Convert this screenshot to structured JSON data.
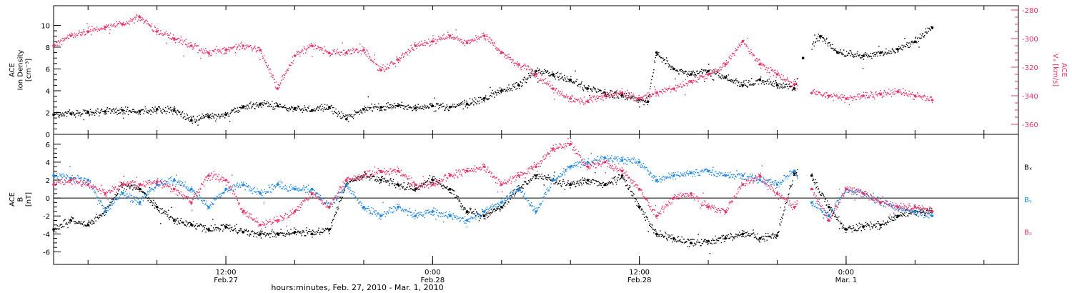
{
  "figure": {
    "x_axis_title": "hours:minutes, Feb. 27, 2010 - Mar.  1, 2010",
    "x_ticks": [
      {
        "time": "12:00",
        "date": "Feb.27",
        "hours": 12
      },
      {
        "time": "0:00",
        "date": "Feb.28",
        "hours": 24
      },
      {
        "time": "12:00",
        "date": "Feb.28",
        "hours": 36
      },
      {
        "time": "0:00",
        "date": "Mar.  1",
        "hours": 48
      }
    ],
    "colors": {
      "black": "#000000",
      "pink": "#e8336a",
      "blue": "#1f88e5",
      "axis": "#000000"
    }
  },
  "chart_data": [
    {
      "type": "scatter",
      "panel": "top",
      "xlim_hours": [
        2,
        58
      ],
      "left_axis": {
        "label_lines": [
          "ACE",
          "Ion Density",
          "[cm⁻³]"
        ],
        "ylim": [
          0,
          11.8
        ],
        "ticks": [
          0,
          2,
          4,
          6,
          8,
          10
        ]
      },
      "right_axis": {
        "label_lines": [
          "ACE",
          "Vₓ [km/s]"
        ],
        "ylim": [
          -367,
          -277
        ],
        "ticks": [
          -280,
          -300,
          -320,
          -340,
          -360
        ]
      },
      "series": [
        {
          "axis": "left",
          "color": "black",
          "points": [
            [
              2,
              1.8
            ],
            [
              3,
              1.9
            ],
            [
              4,
              2.0
            ],
            [
              5,
              2.1
            ],
            [
              6,
              2.2
            ],
            [
              7,
              2.1
            ],
            [
              8,
              2.3
            ],
            [
              9,
              2.2
            ],
            [
              10,
              1.3
            ],
            [
              11,
              1.6
            ],
            [
              12,
              1.8
            ],
            [
              13,
              2.5
            ],
            [
              14,
              2.8
            ],
            [
              15,
              2.6
            ],
            [
              16,
              2.4
            ],
            [
              17,
              2.2
            ],
            [
              18,
              2.5
            ],
            [
              19,
              1.4
            ],
            [
              20,
              2.3
            ],
            [
              21,
              2.5
            ],
            [
              22,
              2.6
            ],
            [
              23,
              2.4
            ],
            [
              24,
              2.6
            ],
            [
              25,
              2.5
            ],
            [
              26,
              2.8
            ],
            [
              27,
              3.3
            ],
            [
              28,
              4.0
            ],
            [
              29,
              4.5
            ],
            [
              30,
              5.8
            ],
            [
              31,
              5.5
            ],
            [
              32,
              5.0
            ],
            [
              33,
              4.2
            ],
            [
              34,
              3.8
            ],
            [
              35,
              3.6
            ],
            [
              36,
              3.2
            ],
            [
              36.5,
              3.0
            ],
            [
              37,
              7.5
            ],
            [
              38,
              6.0
            ],
            [
              39,
              5.5
            ],
            [
              40,
              5.8
            ],
            [
              41,
              5.2
            ],
            [
              42,
              4.5
            ],
            [
              43,
              5.0
            ],
            [
              44,
              4.5
            ],
            [
              45,
              4.2
            ],
            [
              45.5,
              7.0
            ],
            [
              46.5,
              9.0
            ],
            [
              47.5,
              7.5
            ],
            [
              49,
              7.2
            ],
            [
              50,
              7.5
            ],
            [
              51,
              7.8
            ],
            [
              52,
              8.5
            ],
            [
              53,
              9.8
            ]
          ]
        },
        {
          "axis": "right",
          "color": "pink",
          "points": [
            [
              2,
              -305
            ],
            [
              3,
              -298
            ],
            [
              4,
              -295
            ],
            [
              5,
              -292
            ],
            [
              6,
              -290
            ],
            [
              7,
              -285
            ],
            [
              8,
              -295
            ],
            [
              9,
              -300
            ],
            [
              10,
              -305
            ],
            [
              11,
              -310
            ],
            [
              12,
              -308
            ],
            [
              13,
              -305
            ],
            [
              14,
              -308
            ],
            [
              15,
              -335
            ],
            [
              16,
              -312
            ],
            [
              17,
              -305
            ],
            [
              18,
              -310
            ],
            [
              19,
              -310
            ],
            [
              20,
              -308
            ],
            [
              21,
              -322
            ],
            [
              22,
              -315
            ],
            [
              23,
              -305
            ],
            [
              24,
              -302
            ],
            [
              25,
              -298
            ],
            [
              26,
              -303
            ],
            [
              27,
              -298
            ],
            [
              28,
              -310
            ],
            [
              29,
              -318
            ],
            [
              30,
              -325
            ],
            [
              31,
              -335
            ],
            [
              32,
              -342
            ],
            [
              33,
              -344
            ],
            [
              34,
              -340
            ],
            [
              35,
              -338
            ],
            [
              36,
              -342
            ],
            [
              37,
              -338
            ],
            [
              38,
              -335
            ],
            [
              39,
              -330
            ],
            [
              40,
              -325
            ],
            [
              41,
              -318
            ],
            [
              42,
              -302
            ],
            [
              43,
              -318
            ],
            [
              44,
              -325
            ],
            [
              45,
              -332
            ],
            [
              46,
              -338
            ],
            [
              47,
              -340
            ],
            [
              48,
              -342
            ],
            [
              49,
              -340
            ],
            [
              50,
              -339
            ],
            [
              51,
              -337
            ],
            [
              52,
              -340
            ],
            [
              53,
              -343
            ]
          ]
        }
      ]
    },
    {
      "type": "scatter",
      "panel": "bottom",
      "xlim_hours": [
        2,
        58
      ],
      "left_axis": {
        "label_lines": [
          "ACE",
          "B",
          "[nT]"
        ],
        "ylim": [
          -7.4,
          7.1
        ],
        "ticks": [
          -6,
          -4,
          -2,
          0,
          2,
          4,
          6
        ]
      },
      "legend": {
        "position": "right",
        "entries": [
          {
            "label": "Bₓ",
            "color": "black"
          },
          {
            "label": "Bᵧ",
            "color": "blue"
          },
          {
            "label": "Bₔ",
            "color": "pink"
          }
        ]
      },
      "series": [
        {
          "name": "Bₓ",
          "color": "black",
          "points": [
            [
              2,
              -3.5
            ],
            [
              3,
              -2.5
            ],
            [
              4,
              -3.0
            ],
            [
              5,
              -1.5
            ],
            [
              6,
              1.5
            ],
            [
              7,
              1.0
            ],
            [
              8,
              -1.0
            ],
            [
              9,
              -2.5
            ],
            [
              10,
              -3.0
            ],
            [
              11,
              -3.5
            ],
            [
              12,
              -3.2
            ],
            [
              13,
              -3.8
            ],
            [
              14,
              -4.0
            ],
            [
              15,
              -4.0
            ],
            [
              16,
              -3.8
            ],
            [
              17,
              -4.0
            ],
            [
              18,
              -3.5
            ],
            [
              19,
              1.5
            ],
            [
              20,
              2.5
            ],
            [
              21,
              2.0
            ],
            [
              22,
              1.5
            ],
            [
              23,
              1.0
            ],
            [
              24,
              2.0
            ],
            [
              25,
              1.0
            ],
            [
              26,
              -1.5
            ],
            [
              27,
              -2.0
            ],
            [
              28,
              -1.0
            ],
            [
              29,
              1.0
            ],
            [
              30,
              2.5
            ],
            [
              31,
              2.0
            ],
            [
              32,
              1.5
            ],
            [
              33,
              2.0
            ],
            [
              34,
              1.5
            ],
            [
              35,
              2.5
            ],
            [
              36,
              -1.0
            ],
            [
              37,
              -4.0
            ],
            [
              38,
              -4.5
            ],
            [
              39,
              -5.0
            ],
            [
              40,
              -4.8
            ],
            [
              41,
              -4.5
            ],
            [
              42,
              -4.0
            ],
            [
              43,
              -4.5
            ],
            [
              44,
              -4.2
            ],
            [
              45,
              2.8
            ],
            [
              46,
              2.5
            ],
            [
              47,
              -1.0
            ],
            [
              48,
              -3.5
            ],
            [
              49,
              -3.2
            ],
            [
              50,
              -3.0
            ],
            [
              51,
              -2.0
            ],
            [
              52,
              -1.5
            ],
            [
              53,
              -1.5
            ]
          ]
        },
        {
          "name": "Bᵧ",
          "color": "blue",
          "points": [
            [
              2,
              2.5
            ],
            [
              3,
              2.2
            ],
            [
              4,
              2.0
            ],
            [
              5,
              -1.5
            ],
            [
              6,
              0.5
            ],
            [
              7,
              -0.5
            ],
            [
              8,
              1.5
            ],
            [
              9,
              2.0
            ],
            [
              10,
              1.0
            ],
            [
              11,
              -1.0
            ],
            [
              12,
              1.0
            ],
            [
              13,
              1.5
            ],
            [
              14,
              0.5
            ],
            [
              15,
              1.5
            ],
            [
              16,
              1.0
            ],
            [
              17,
              1.0
            ],
            [
              18,
              -1.0
            ],
            [
              19,
              1.5
            ],
            [
              20,
              -1.0
            ],
            [
              21,
              -2.0
            ],
            [
              22,
              -1.0
            ],
            [
              23,
              -2.0
            ],
            [
              24,
              -1.5
            ],
            [
              25,
              -2.0
            ],
            [
              26,
              -2.5
            ],
            [
              27,
              -1.5
            ],
            [
              28,
              -0.5
            ],
            [
              29,
              1.0
            ],
            [
              30,
              -1.5
            ],
            [
              31,
              2.0
            ],
            [
              32,
              3.5
            ],
            [
              33,
              4.0
            ],
            [
              34,
              4.5
            ],
            [
              35,
              4.2
            ],
            [
              36,
              4.0
            ],
            [
              37,
              2.0
            ],
            [
              38,
              2.5
            ],
            [
              39,
              2.8
            ],
            [
              40,
              3.0
            ],
            [
              41,
              2.5
            ],
            [
              42,
              2.5
            ],
            [
              43,
              2.0
            ],
            [
              44,
              1.5
            ],
            [
              45,
              3.0
            ],
            [
              46,
              -0.5
            ],
            [
              47,
              -2.0
            ],
            [
              48,
              1.0
            ],
            [
              49,
              0.5
            ],
            [
              50,
              -0.5
            ],
            [
              51,
              -1.0
            ],
            [
              52,
              -1.5
            ],
            [
              53,
              -2.0
            ]
          ]
        },
        {
          "name": "Bₔ",
          "color": "pink",
          "points": [
            [
              2,
              1.5
            ],
            [
              3,
              2.0
            ],
            [
              4,
              1.5
            ],
            [
              5,
              0.5
            ],
            [
              6,
              1.5
            ],
            [
              7,
              1.5
            ],
            [
              8,
              1.8
            ],
            [
              9,
              1.0
            ],
            [
              10,
              -0.5
            ],
            [
              11,
              2.5
            ],
            [
              12,
              2.0
            ],
            [
              13,
              -1.5
            ],
            [
              14,
              -3.0
            ],
            [
              15,
              -2.5
            ],
            [
              16,
              -1.5
            ],
            [
              17,
              0.5
            ],
            [
              18,
              -1.0
            ],
            [
              19,
              2.0
            ],
            [
              20,
              2.5
            ],
            [
              21,
              3.0
            ],
            [
              22,
              3.0
            ],
            [
              23,
              1.5
            ],
            [
              24,
              1.5
            ],
            [
              25,
              2.5
            ],
            [
              26,
              3.0
            ],
            [
              27,
              3.5
            ],
            [
              28,
              1.5
            ],
            [
              29,
              2.5
            ],
            [
              30,
              3.5
            ],
            [
              31,
              5.5
            ],
            [
              32,
              6.0
            ],
            [
              33,
              3.5
            ],
            [
              34,
              4.0
            ],
            [
              35,
              3.0
            ],
            [
              36,
              1.0
            ],
            [
              37,
              -2.0
            ],
            [
              38,
              0.0
            ],
            [
              39,
              0.5
            ],
            [
              40,
              -1.0
            ],
            [
              41,
              -1.5
            ],
            [
              42,
              1.5
            ],
            [
              43,
              2.5
            ],
            [
              44,
              0.5
            ],
            [
              45,
              -1.0
            ],
            [
              46,
              1.0
            ],
            [
              47,
              -2.5
            ],
            [
              48,
              1.0
            ],
            [
              49,
              0.5
            ],
            [
              50,
              -0.5
            ],
            [
              51,
              -1.0
            ],
            [
              52,
              -1.0
            ],
            [
              53,
              -1.5
            ]
          ]
        }
      ]
    }
  ]
}
